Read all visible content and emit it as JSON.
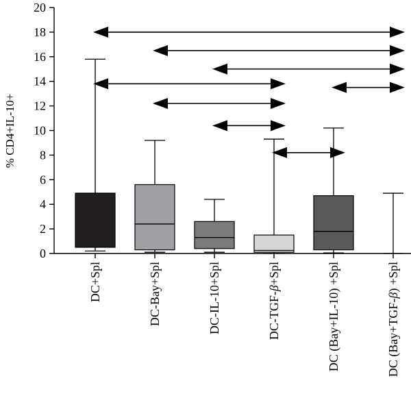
{
  "chart_data": {
    "type": "box",
    "ylabel": "% CD4+IL-10+",
    "ylim": [
      0,
      20
    ],
    "yticks": [
      0,
      2,
      4,
      6,
      8,
      10,
      12,
      14,
      16,
      18,
      20
    ],
    "categories": [
      {
        "label": "DC+Spl",
        "italic_beta": false
      },
      {
        "label": "DC-Bay+Spl",
        "italic_beta": false
      },
      {
        "label": "DC-IL-10+Spl",
        "italic_beta": false
      },
      {
        "label": "DC-TGF-β+Spl",
        "italic_beta": true
      },
      {
        "label": "DC (Bay+IL-10) +Spl",
        "italic_beta": false
      },
      {
        "label": "DC (Bay+TGF-β) +Spl",
        "italic_beta": true
      }
    ],
    "boxes": [
      {
        "min": 0.2,
        "q1": 0.5,
        "median": 4.9,
        "q3": 4.9,
        "max": 15.8,
        "color": "#231f20"
      },
      {
        "min": 0.1,
        "q1": 0.3,
        "median": 2.4,
        "q3": 5.6,
        "max": 9.2,
        "color": "#a0a0a4"
      },
      {
        "min": 0.1,
        "q1": 0.4,
        "median": 1.3,
        "q3": 2.6,
        "max": 4.4,
        "color": "#7b7b7e"
      },
      {
        "min": 0.0,
        "q1": 0.1,
        "median": 0.25,
        "q3": 1.5,
        "max": 9.3,
        "color": "#d6d6d6"
      },
      {
        "min": 0.05,
        "q1": 0.3,
        "median": 1.8,
        "q3": 4.7,
        "max": 10.2,
        "color": "#5a5a5d"
      },
      {
        "min": 0.0,
        "q1": 0.0,
        "median": 0.0,
        "q3": 0.0,
        "max": 4.9,
        "color": "#ffffff"
      }
    ],
    "comparisons": [
      {
        "from": 0,
        "to": 5,
        "y": 18.0
      },
      {
        "from": 1,
        "to": 5,
        "y": 16.5
      },
      {
        "from": 2,
        "to": 5,
        "y": 15.0
      },
      {
        "from": 0,
        "to": 3,
        "y": 13.8
      },
      {
        "from": 4,
        "to": 5,
        "y": 13.5
      },
      {
        "from": 1,
        "to": 3,
        "y": 12.2
      },
      {
        "from": 2,
        "to": 3,
        "y": 10.4
      },
      {
        "from": 3,
        "to": 4,
        "y": 8.2
      }
    ]
  }
}
